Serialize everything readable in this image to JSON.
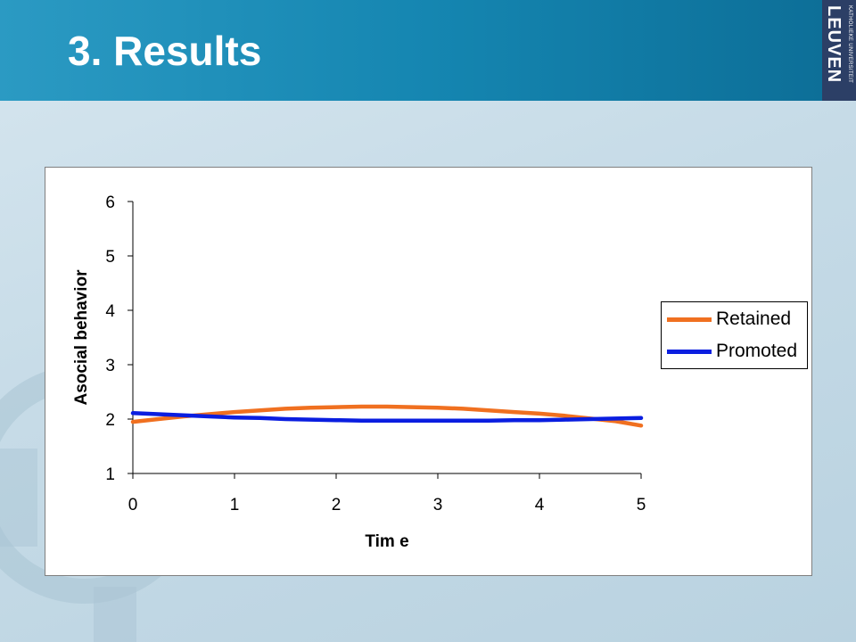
{
  "slide": {
    "title": "3. Results"
  },
  "logo": {
    "main": "LEUVEN",
    "sub": "KATHOLIEKE UNIVERSITEIT"
  },
  "colors": {
    "header": "#1586b1",
    "retained": "#f07020",
    "promoted": "#0a1ee0"
  },
  "chart_data": {
    "type": "line",
    "xlabel": "Tim e",
    "ylabel": "Asocial behavior",
    "xlim": [
      0,
      5
    ],
    "ylim": [
      1,
      6
    ],
    "xticks": [
      "0",
      "1",
      "2",
      "3",
      "4",
      "5"
    ],
    "yticks": [
      "1",
      "2",
      "3",
      "4",
      "5",
      "6"
    ],
    "grid": false,
    "legend_position": "right",
    "series": [
      {
        "name": "Retained",
        "color": "#f07020",
        "x": [
          0,
          0.25,
          0.5,
          0.75,
          1.0,
          1.25,
          1.5,
          1.75,
          2.0,
          2.25,
          2.5,
          2.75,
          3.0,
          3.25,
          3.5,
          3.75,
          4.0,
          4.25,
          4.5,
          4.75,
          5.0
        ],
        "values": [
          1.95,
          2.0,
          2.05,
          2.09,
          2.13,
          2.16,
          2.19,
          2.21,
          2.22,
          2.23,
          2.23,
          2.22,
          2.21,
          2.19,
          2.16,
          2.13,
          2.1,
          2.06,
          2.01,
          1.96,
          1.88
        ]
      },
      {
        "name": "Promoted",
        "color": "#0a1ee0",
        "x": [
          0,
          0.25,
          0.5,
          0.75,
          1.0,
          1.25,
          1.5,
          1.75,
          2.0,
          2.25,
          2.5,
          2.75,
          3.0,
          3.25,
          3.5,
          3.75,
          4.0,
          4.25,
          4.5,
          4.75,
          5.0
        ],
        "values": [
          2.11,
          2.09,
          2.07,
          2.05,
          2.03,
          2.02,
          2.0,
          1.99,
          1.98,
          1.97,
          1.97,
          1.97,
          1.97,
          1.97,
          1.97,
          1.98,
          1.98,
          1.99,
          2.0,
          2.01,
          2.02
        ]
      }
    ]
  }
}
